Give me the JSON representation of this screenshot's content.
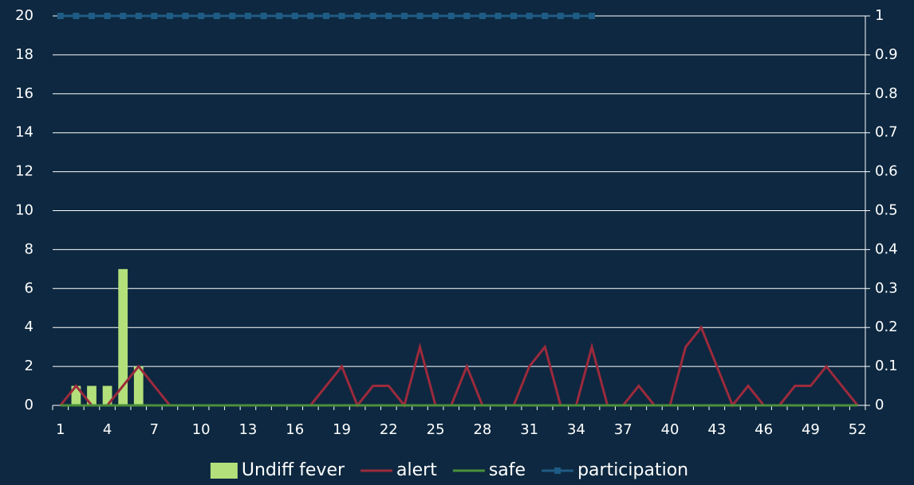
{
  "chart_data": {
    "type": "bar",
    "categories": [
      1,
      null,
      null,
      4,
      null,
      null,
      7,
      null,
      null,
      10,
      null,
      null,
      13,
      null,
      null,
      16,
      null,
      null,
      19,
      null,
      null,
      22,
      null,
      null,
      25,
      null,
      null,
      28,
      null,
      null,
      31,
      null,
      null,
      34,
      null,
      null,
      37,
      null,
      null,
      40,
      null,
      null,
      43,
      null,
      null,
      46,
      null,
      null,
      49,
      null,
      null,
      52
    ],
    "ylim": [
      0,
      20
    ],
    "yticks": [
      0,
      2,
      4,
      6,
      8,
      10,
      12,
      14,
      16,
      18,
      20
    ],
    "y2lim": [
      0,
      1
    ],
    "y2ticks": [
      0,
      0.1,
      0.2,
      0.3,
      0.4,
      0.5,
      0.6,
      0.7,
      0.8,
      0.9,
      1
    ],
    "grid": true,
    "legend": "bottom",
    "series": [
      {
        "name": "Undiff fever",
        "type": "bar",
        "color": "#b3e07a",
        "values": [
          0,
          1,
          1,
          1,
          7,
          2,
          0,
          0,
          0,
          0,
          0,
          0,
          0,
          0,
          0,
          0,
          0,
          0,
          0,
          0,
          0,
          0,
          0,
          0,
          0,
          0,
          0,
          0,
          0,
          0,
          0,
          0,
          0,
          0,
          0,
          0,
          0,
          0,
          0,
          0,
          0,
          0,
          0,
          0,
          0,
          0,
          0,
          0,
          0,
          0,
          0,
          0
        ]
      },
      {
        "name": "alert",
        "type": "line",
        "color": "#9c2a3c",
        "values": [
          0,
          1,
          0,
          0,
          1,
          2,
          1,
          0,
          0,
          0,
          0,
          0,
          0,
          0,
          0,
          0,
          0,
          1,
          2,
          0,
          1,
          1,
          0,
          3,
          0,
          0,
          2,
          0,
          0,
          0,
          2,
          3,
          0,
          0,
          3,
          0,
          0,
          1,
          0,
          0,
          3,
          4,
          2,
          0,
          1,
          0,
          0,
          1,
          1,
          2,
          1,
          0
        ]
      },
      {
        "name": "safe",
        "type": "line",
        "color": "#4a8f3a",
        "values": [
          0,
          0,
          0,
          0,
          0,
          0,
          0,
          0,
          0,
          0,
          0,
          0,
          0,
          0,
          0,
          0,
          0,
          0,
          0,
          0,
          0,
          0,
          0,
          0,
          0,
          0,
          0,
          0,
          0,
          0,
          0,
          0,
          0,
          0,
          0,
          0,
          0,
          0,
          0,
          0,
          0,
          0,
          0,
          0,
          0,
          0,
          0,
          0,
          0,
          0,
          0,
          0
        ]
      },
      {
        "name": "participation",
        "type": "line",
        "axis": "y2",
        "marker": "square",
        "color": "#1f5c85",
        "values": [
          1,
          1,
          1,
          1,
          1,
          1,
          1,
          1,
          1,
          1,
          1,
          1,
          1,
          1,
          1,
          1,
          1,
          1,
          1,
          1,
          1,
          1,
          1,
          1,
          1,
          1,
          1,
          1,
          1,
          1,
          1,
          1,
          1,
          1,
          1,
          null,
          null,
          null,
          null,
          null,
          null,
          null,
          null,
          null,
          null,
          null,
          null,
          null,
          null,
          null,
          null,
          null
        ]
      }
    ]
  }
}
